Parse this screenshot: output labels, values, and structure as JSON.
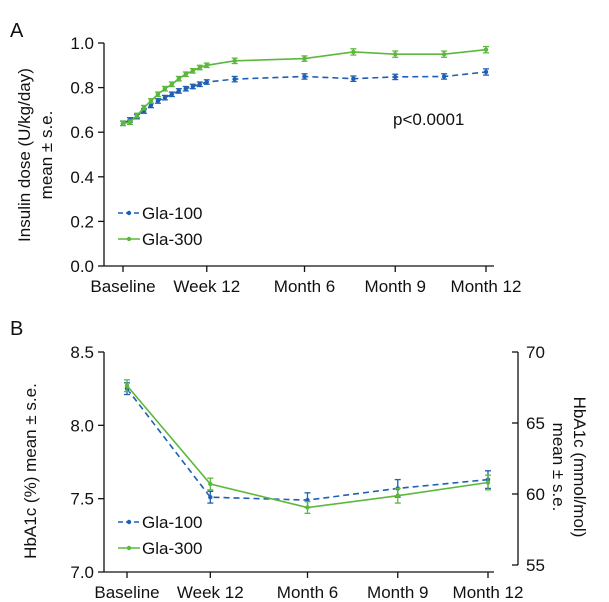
{
  "colors": {
    "gla100": "#1f5fb4",
    "gla300": "#5cb83c"
  },
  "chart_data": [
    {
      "panel": "A",
      "type": "line",
      "ylabel": [
        "Insulin dose (U/kg/day)",
        "mean ± s.e."
      ],
      "ylim": [
        0,
        1.0
      ],
      "yticks": [
        "0.0",
        "0.2",
        "0.4",
        "0.6",
        "0.8",
        "1.0"
      ],
      "xtick_labels": [
        {
          "label": "Baseline",
          "week": 0
        },
        {
          "label": "Week 12",
          "week": 12
        },
        {
          "label": "Month 6",
          "week": 26
        },
        {
          "label": "Month 9",
          "week": 39
        },
        {
          "label": "Month 12",
          "week": 52
        }
      ],
      "annotation": "p<0.0001",
      "legend_position": "lower-left",
      "series": [
        {
          "name": "Gla-100",
          "style": "dashed",
          "color": "#1f5fb4",
          "points": [
            {
              "week": 0,
              "y": 0.64,
              "err": 0.01
            },
            {
              "week": 1,
              "y": 0.655,
              "err": 0.01
            },
            {
              "week": 2,
              "y": 0.67,
              "err": 0.01
            },
            {
              "week": 3,
              "y": 0.695,
              "err": 0.01
            },
            {
              "week": 4,
              "y": 0.72,
              "err": 0.01
            },
            {
              "week": 5,
              "y": 0.74,
              "err": 0.01
            },
            {
              "week": 6,
              "y": 0.755,
              "err": 0.01
            },
            {
              "week": 7,
              "y": 0.77,
              "err": 0.01
            },
            {
              "week": 8,
              "y": 0.785,
              "err": 0.01
            },
            {
              "week": 9,
              "y": 0.795,
              "err": 0.01
            },
            {
              "week": 10,
              "y": 0.805,
              "err": 0.01
            },
            {
              "week": 11,
              "y": 0.815,
              "err": 0.01
            },
            {
              "week": 12,
              "y": 0.825,
              "err": 0.01
            },
            {
              "week": 16,
              "y": 0.838,
              "err": 0.012
            },
            {
              "week": 26,
              "y": 0.85,
              "err": 0.012
            },
            {
              "week": 33,
              "y": 0.84,
              "err": 0.012
            },
            {
              "week": 39,
              "y": 0.848,
              "err": 0.012
            },
            {
              "week": 46,
              "y": 0.85,
              "err": 0.012
            },
            {
              "week": 52,
              "y": 0.87,
              "err": 0.014
            }
          ]
        },
        {
          "name": "Gla-300",
          "style": "solid",
          "color": "#5cb83c",
          "points": [
            {
              "week": 0,
              "y": 0.64,
              "err": 0.01
            },
            {
              "week": 1,
              "y": 0.645,
              "err": 0.01
            },
            {
              "week": 2,
              "y": 0.675,
              "err": 0.01
            },
            {
              "week": 3,
              "y": 0.71,
              "err": 0.01
            },
            {
              "week": 4,
              "y": 0.74,
              "err": 0.01
            },
            {
              "week": 5,
              "y": 0.77,
              "err": 0.01
            },
            {
              "week": 6,
              "y": 0.795,
              "err": 0.01
            },
            {
              "week": 7,
              "y": 0.815,
              "err": 0.01
            },
            {
              "week": 8,
              "y": 0.84,
              "err": 0.01
            },
            {
              "week": 9,
              "y": 0.86,
              "err": 0.01
            },
            {
              "week": 10,
              "y": 0.875,
              "err": 0.01
            },
            {
              "week": 11,
              "y": 0.89,
              "err": 0.01
            },
            {
              "week": 12,
              "y": 0.9,
              "err": 0.01
            },
            {
              "week": 16,
              "y": 0.92,
              "err": 0.012
            },
            {
              "week": 26,
              "y": 0.93,
              "err": 0.012
            },
            {
              "week": 33,
              "y": 0.96,
              "err": 0.014
            },
            {
              "week": 39,
              "y": 0.95,
              "err": 0.014
            },
            {
              "week": 46,
              "y": 0.95,
              "err": 0.014
            },
            {
              "week": 52,
              "y": 0.97,
              "err": 0.014
            }
          ]
        }
      ]
    },
    {
      "panel": "B",
      "type": "line",
      "ylabel": [
        "HbA1c (%) mean ± s.e."
      ],
      "ylabel_right": [
        "HbA1c (mmol/mol)",
        "mean ± s.e."
      ],
      "ylim": [
        7.0,
        8.5
      ],
      "yticks": [
        "7.0",
        "7.5",
        "8.0",
        "8.5"
      ],
      "yticks_right": [
        "55",
        "60",
        "65",
        "70"
      ],
      "xtick_labels": [
        {
          "label": "Baseline",
          "week": 0
        },
        {
          "label": "Week 12",
          "week": 12
        },
        {
          "label": "Month 6",
          "week": 26
        },
        {
          "label": "Month 9",
          "week": 39
        },
        {
          "label": "Month 12",
          "week": 52
        }
      ],
      "legend_position": "lower-left",
      "series": [
        {
          "name": "Gla-100",
          "style": "dashed",
          "color": "#1f5fb4",
          "points": [
            {
              "week": 0,
              "y": 8.25,
              "err": 0.04
            },
            {
              "week": 12,
              "y": 7.51,
              "err": 0.04
            },
            {
              "week": 26,
              "y": 7.49,
              "err": 0.05
            },
            {
              "week": 39,
              "y": 7.57,
              "err": 0.06
            },
            {
              "week": 52,
              "y": 7.63,
              "err": 0.06
            }
          ]
        },
        {
          "name": "Gla-300",
          "style": "solid",
          "color": "#5cb83c",
          "points": [
            {
              "week": 0,
              "y": 8.27,
              "err": 0.04
            },
            {
              "week": 12,
              "y": 7.6,
              "err": 0.04
            },
            {
              "week": 26,
              "y": 7.44,
              "err": 0.04
            },
            {
              "week": 39,
              "y": 7.52,
              "err": 0.05
            },
            {
              "week": 52,
              "y": 7.61,
              "err": 0.05
            }
          ]
        }
      ]
    }
  ]
}
